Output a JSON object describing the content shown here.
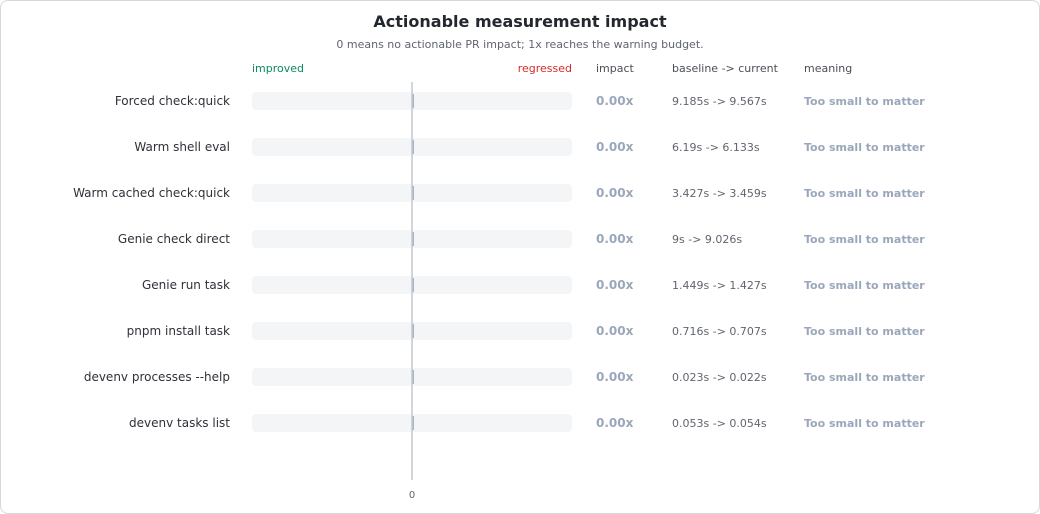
{
  "chart_data": {
    "type": "bar",
    "title": "Actionable measurement impact",
    "subtitle": "0 means no actionable PR impact; 1x reaches the warning budget.",
    "axis": {
      "left_label": "improved",
      "right_label": "regressed",
      "zero_tick": "0",
      "xlim": [
        -1,
        1
      ]
    },
    "columns": {
      "impact": "impact",
      "baseline_current": "baseline -> current",
      "meaning": "meaning"
    },
    "categories": [
      "Forced check:quick",
      "Warm shell eval",
      "Warm cached check:quick",
      "Genie check direct",
      "Genie run task",
      "pnpm install task",
      "devenv processes --help",
      "devenv tasks list"
    ],
    "values": [
      0,
      0,
      0,
      0,
      0,
      0,
      0,
      0
    ],
    "rows": [
      {
        "label": "Forced check:quick",
        "value": 0,
        "impact": "0.00x",
        "baseline_current": "9.185s -> 9.567s",
        "meaning": "Too small to matter"
      },
      {
        "label": "Warm shell eval",
        "value": 0,
        "impact": "0.00x",
        "baseline_current": "6.19s -> 6.133s",
        "meaning": "Too small to matter"
      },
      {
        "label": "Warm cached check:quick",
        "value": 0,
        "impact": "0.00x",
        "baseline_current": "3.427s -> 3.459s",
        "meaning": "Too small to matter"
      },
      {
        "label": "Genie check direct",
        "value": 0,
        "impact": "0.00x",
        "baseline_current": "9s -> 9.026s",
        "meaning": "Too small to matter"
      },
      {
        "label": "Genie run task",
        "value": 0,
        "impact": "0.00x",
        "baseline_current": "1.449s -> 1.427s",
        "meaning": "Too small to matter"
      },
      {
        "label": "pnpm install task",
        "value": 0,
        "impact": "0.00x",
        "baseline_current": "0.716s -> 0.707s",
        "meaning": "Too small to matter"
      },
      {
        "label": "devenv processes --help",
        "value": 0,
        "impact": "0.00x",
        "baseline_current": "0.023s -> 0.022s",
        "meaning": "Too small to matter"
      },
      {
        "label": "devenv tasks list",
        "value": 0,
        "impact": "0.00x",
        "baseline_current": "0.053s -> 0.054s",
        "meaning": "Too small to matter"
      }
    ],
    "colors": {
      "improved": "#0a8a5a",
      "regressed": "#d62a2a",
      "track": "#f4f5f7",
      "zero_line": "#c4c8cf",
      "bar": "#a7b4c6",
      "muted_value": "#9aa7ba",
      "text": "#2d3138",
      "secondary": "#60656e"
    }
  }
}
